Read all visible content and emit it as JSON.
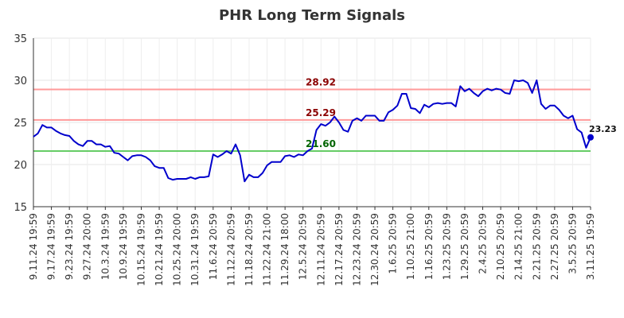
{
  "chart_data": {
    "type": "line",
    "title": "PHR Long Term Signals",
    "xlabel": "",
    "ylabel": "",
    "ylim": [
      15,
      35
    ],
    "yticks": [
      "15",
      "20",
      "25",
      "30",
      "35"
    ],
    "grid": true,
    "x_tick_labels": [
      "9.11.24 19:59",
      "9.17.24 19:59",
      "9.23.24 19:59",
      "9.27.24 20:00",
      "10.3.24 19:59",
      "10.9.24 19:59",
      "10.15.24 19:59",
      "10.21.24 19:59",
      "10.25.24 20:00",
      "10.31.24 19:59",
      "11.6.24 20:59",
      "11.12.24 20:59",
      "11.18.24 20:59",
      "11.22.24 21:00",
      "11.29.24 18:00",
      "12.5.24 20:59",
      "12.11.24 20:59",
      "12.17.24 20:59",
      "12.23.24 20:59",
      "12.30.24 20:59",
      "1.6.25 20:59",
      "1.10.25 21:00",
      "1.16.25 20:59",
      "1.23.25 20:59",
      "1.29.25 20:59",
      "2.4.25 20:59",
      "2.10.25 20:59",
      "2.14.25 21:00",
      "2.21.25 20:59",
      "2.27.25 20:59",
      "3.5.25 20:59",
      "3.11.25 19:59"
    ],
    "levels": [
      {
        "label": "28.92",
        "value": 28.92,
        "color": "#ff9999",
        "text_color": "#8b0000"
      },
      {
        "label": "25.29",
        "value": 25.29,
        "color": "#ff9999",
        "text_color": "#8b0000"
      },
      {
        "label": "21.60",
        "value": 21.6,
        "color": "#66cc66",
        "text_color": "#006400"
      }
    ],
    "last_value_label": "23.23",
    "series": [
      {
        "color": "#0000cc",
        "values": [
          23.3,
          23.7,
          24.7,
          24.4,
          24.4,
          24.0,
          23.7,
          23.5,
          23.4,
          22.8,
          22.4,
          22.2,
          22.8,
          22.8,
          22.4,
          22.4,
          22.1,
          22.2,
          21.4,
          21.3,
          20.9,
          20.5,
          21.0,
          21.1,
          21.1,
          20.9,
          20.5,
          19.8,
          19.6,
          19.6,
          18.4,
          18.2,
          18.3,
          18.3,
          18.3,
          18.5,
          18.3,
          18.5,
          18.5,
          18.6,
          21.2,
          20.9,
          21.2,
          21.6,
          21.3,
          22.4,
          21.1,
          18.0,
          18.8,
          18.5,
          18.5,
          19.0,
          19.9,
          20.3,
          20.3,
          20.3,
          21.0,
          21.1,
          20.9,
          21.2,
          21.1,
          21.6,
          21.9,
          24.1,
          24.8,
          24.6,
          25.0,
          25.7,
          25.0,
          24.1,
          23.9,
          25.2,
          25.5,
          25.2,
          25.8,
          25.8,
          25.8,
          25.2,
          25.2,
          26.2,
          26.5,
          27.0,
          28.4,
          28.4,
          26.7,
          26.6,
          26.1,
          27.1,
          26.8,
          27.2,
          27.3,
          27.2,
          27.3,
          27.3,
          26.9,
          29.3,
          28.7,
          29.0,
          28.5,
          28.1,
          28.7,
          29.0,
          28.8,
          29.0,
          28.9,
          28.5,
          28.4,
          30.0,
          29.9,
          30.0,
          29.7,
          28.5,
          30.0,
          27.2,
          26.6,
          27.0,
          27.0,
          26.5,
          25.8,
          25.5,
          25.8,
          24.2,
          23.8,
          22.0,
          23.23
        ]
      }
    ]
  }
}
